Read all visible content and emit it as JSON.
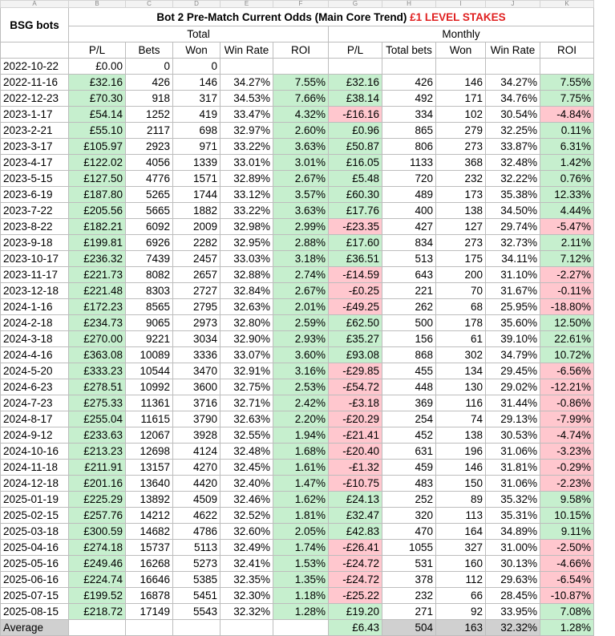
{
  "column_letters": [
    "A",
    "B",
    "C",
    "D",
    "E",
    "F",
    "G",
    "H",
    "I",
    "J",
    "K"
  ],
  "title": {
    "text": "Bot 2 Pre-Match Current Odds (Main Core Trend)",
    "highlight": "£1 LEVEL STAKES"
  },
  "corner_label": "BSG bots",
  "group_total": "Total",
  "group_monthly": "Monthly",
  "headers": [
    "P/L",
    "Bets",
    "Won",
    "Win Rate",
    "ROI",
    "P/L",
    "Total bets",
    "Won",
    "Win Rate",
    "ROI"
  ],
  "rows": [
    [
      "2022-10-22",
      "£0.00",
      "0",
      "0",
      "",
      "",
      "",
      "",
      "",
      "",
      ""
    ],
    [
      "2022-11-16",
      "£32.16",
      "426",
      "146",
      "34.27%",
      "7.55%",
      "£32.16",
      "426",
      "146",
      "34.27%",
      "7.55%"
    ],
    [
      "2022-12-23",
      "£70.30",
      "918",
      "317",
      "34.53%",
      "7.66%",
      "£38.14",
      "492",
      "171",
      "34.76%",
      "7.75%"
    ],
    [
      "2023-1-17",
      "£54.14",
      "1252",
      "419",
      "33.47%",
      "4.32%",
      "-£16.16",
      "334",
      "102",
      "30.54%",
      "-4.84%"
    ],
    [
      "2023-2-21",
      "£55.10",
      "2117",
      "698",
      "32.97%",
      "2.60%",
      "£0.96",
      "865",
      "279",
      "32.25%",
      "0.11%"
    ],
    [
      "2023-3-17",
      "£105.97",
      "2923",
      "971",
      "33.22%",
      "3.63%",
      "£50.87",
      "806",
      "273",
      "33.87%",
      "6.31%"
    ],
    [
      "2023-4-17",
      "£122.02",
      "4056",
      "1339",
      "33.01%",
      "3.01%",
      "£16.05",
      "1133",
      "368",
      "32.48%",
      "1.42%"
    ],
    [
      "2023-5-15",
      "£127.50",
      "4776",
      "1571",
      "32.89%",
      "2.67%",
      "£5.48",
      "720",
      "232",
      "32.22%",
      "0.76%"
    ],
    [
      "2023-6-19",
      "£187.80",
      "5265",
      "1744",
      "33.12%",
      "3.57%",
      "£60.30",
      "489",
      "173",
      "35.38%",
      "12.33%"
    ],
    [
      "2023-7-22",
      "£205.56",
      "5665",
      "1882",
      "33.22%",
      "3.63%",
      "£17.76",
      "400",
      "138",
      "34.50%",
      "4.44%"
    ],
    [
      "2023-8-22",
      "£182.21",
      "6092",
      "2009",
      "32.98%",
      "2.99%",
      "-£23.35",
      "427",
      "127",
      "29.74%",
      "-5.47%"
    ],
    [
      "2023-9-18",
      "£199.81",
      "6926",
      "2282",
      "32.95%",
      "2.88%",
      "£17.60",
      "834",
      "273",
      "32.73%",
      "2.11%"
    ],
    [
      "2023-10-17",
      "£236.32",
      "7439",
      "2457",
      "33.03%",
      "3.18%",
      "£36.51",
      "513",
      "175",
      "34.11%",
      "7.12%"
    ],
    [
      "2023-11-17",
      "£221.73",
      "8082",
      "2657",
      "32.88%",
      "2.74%",
      "-£14.59",
      "643",
      "200",
      "31.10%",
      "-2.27%"
    ],
    [
      "2023-12-18",
      "£221.48",
      "8303",
      "2727",
      "32.84%",
      "2.67%",
      "-£0.25",
      "221",
      "70",
      "31.67%",
      "-0.11%"
    ],
    [
      "2024-1-16",
      "£172.23",
      "8565",
      "2795",
      "32.63%",
      "2.01%",
      "-£49.25",
      "262",
      "68",
      "25.95%",
      "-18.80%"
    ],
    [
      "2024-2-18",
      "£234.73",
      "9065",
      "2973",
      "32.80%",
      "2.59%",
      "£62.50",
      "500",
      "178",
      "35.60%",
      "12.50%"
    ],
    [
      "2024-3-18",
      "£270.00",
      "9221",
      "3034",
      "32.90%",
      "2.93%",
      "£35.27",
      "156",
      "61",
      "39.10%",
      "22.61%"
    ],
    [
      "2024-4-16",
      "£363.08",
      "10089",
      "3336",
      "33.07%",
      "3.60%",
      "£93.08",
      "868",
      "302",
      "34.79%",
      "10.72%"
    ],
    [
      "2024-5-20",
      "£333.23",
      "10544",
      "3470",
      "32.91%",
      "3.16%",
      "-£29.85",
      "455",
      "134",
      "29.45%",
      "-6.56%"
    ],
    [
      "2024-6-23",
      "£278.51",
      "10992",
      "3600",
      "32.75%",
      "2.53%",
      "-£54.72",
      "448",
      "130",
      "29.02%",
      "-12.21%"
    ],
    [
      "2024-7-23",
      "£275.33",
      "11361",
      "3716",
      "32.71%",
      "2.42%",
      "-£3.18",
      "369",
      "116",
      "31.44%",
      "-0.86%"
    ],
    [
      "2024-8-17",
      "£255.04",
      "11615",
      "3790",
      "32.63%",
      "2.20%",
      "-£20.29",
      "254",
      "74",
      "29.13%",
      "-7.99%"
    ],
    [
      "2024-9-12",
      "£233.63",
      "12067",
      "3928",
      "32.55%",
      "1.94%",
      "-£21.41",
      "452",
      "138",
      "30.53%",
      "-4.74%"
    ],
    [
      "2024-10-16",
      "£213.23",
      "12698",
      "4124",
      "32.48%",
      "1.68%",
      "-£20.40",
      "631",
      "196",
      "31.06%",
      "-3.23%"
    ],
    [
      "2024-11-18",
      "£211.91",
      "13157",
      "4270",
      "32.45%",
      "1.61%",
      "-£1.32",
      "459",
      "146",
      "31.81%",
      "-0.29%"
    ],
    [
      "2024-12-18",
      "£201.16",
      "13640",
      "4420",
      "32.40%",
      "1.47%",
      "-£10.75",
      "483",
      "150",
      "31.06%",
      "-2.23%"
    ],
    [
      "2025-01-19",
      "£225.29",
      "13892",
      "4509",
      "32.46%",
      "1.62%",
      "£24.13",
      "252",
      "89",
      "35.32%",
      "9.58%"
    ],
    [
      "2025-02-15",
      "£257.76",
      "14212",
      "4622",
      "32.52%",
      "1.81%",
      "£32.47",
      "320",
      "113",
      "35.31%",
      "10.15%"
    ],
    [
      "2025-03-18",
      "£300.59",
      "14682",
      "4786",
      "32.60%",
      "2.05%",
      "£42.83",
      "470",
      "164",
      "34.89%",
      "9.11%"
    ],
    [
      "2025-04-16",
      "£274.18",
      "15737",
      "5113",
      "32.49%",
      "1.74%",
      "-£26.41",
      "1055",
      "327",
      "31.00%",
      "-2.50%"
    ],
    [
      "2025-05-16",
      "£249.46",
      "16268",
      "5273",
      "32.41%",
      "1.53%",
      "-£24.72",
      "531",
      "160",
      "30.13%",
      "-4.66%"
    ],
    [
      "2025-06-16",
      "£224.74",
      "16646",
      "5385",
      "32.35%",
      "1.35%",
      "-£24.72",
      "378",
      "112",
      "29.63%",
      "-6.54%"
    ],
    [
      "2025-07-15",
      "£199.52",
      "16878",
      "5451",
      "32.30%",
      "1.18%",
      "-£25.22",
      "232",
      "66",
      "28.45%",
      "-10.87%"
    ],
    [
      "2025-08-15",
      "£218.72",
      "17149",
      "5543",
      "32.32%",
      "1.28%",
      "£19.20",
      "271",
      "92",
      "33.95%",
      "7.08%"
    ]
  ],
  "average": {
    "label": "Average",
    "pl": "£6.43",
    "bets": "504",
    "won": "163",
    "win_rate": "32.32%",
    "roi": "1.28%"
  },
  "colors": {
    "positive_fill": "#c6efce",
    "negative_fill": "#ffc7ce",
    "average_fill": "#d0d0d0",
    "title_highlight": "#e02020"
  }
}
